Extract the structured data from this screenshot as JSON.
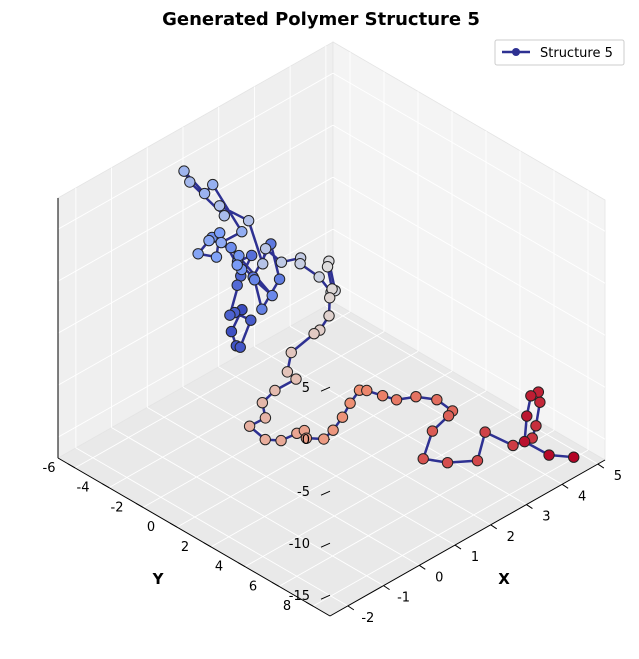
{
  "chart_data": {
    "type": "scatter3d-line",
    "title": "Generated Polymer Structure 5",
    "xlabel": "X",
    "ylabel": "Y",
    "zlabel": "",
    "x_ticks": [
      "-2",
      "-1",
      "0",
      "1",
      "2",
      "3",
      "4",
      "5"
    ],
    "y_ticks": [
      "-6",
      "-4",
      "-2",
      "0",
      "2",
      "4",
      "6",
      "8"
    ],
    "z_ticks": [
      "5",
      "0",
      "-5",
      "-10",
      "-15"
    ],
    "xlim": [
      -2.5,
      5.2
    ],
    "ylim": [
      -7,
      9
    ],
    "zlim": [
      -17,
      8
    ],
    "legend": {
      "label": "Structure 5",
      "position": "top-right"
    },
    "line_color": "#2e3192",
    "colormap": "coolwarm",
    "series": [
      {
        "name": "Structure 5",
        "points": [
          [
            -1.3,
            1.3,
            2.8
          ],
          [
            -1.5,
            1.1,
            0.9
          ],
          [
            -1.6,
            1.6,
            0.2
          ],
          [
            -1.3,
            1.2,
            -0.9
          ],
          [
            -1.1,
            1.4,
            1.5
          ],
          [
            -1.6,
            1.5,
            3.3
          ],
          [
            -1.4,
            0.8,
            2.0
          ],
          [
            -1.0,
            0.6,
            4.8
          ],
          [
            -1.1,
            0.6,
            4.1
          ],
          [
            -0.6,
            0.4,
            5.8
          ],
          [
            -0.9,
            0.2,
            5.6
          ],
          [
            -0.7,
            0.7,
            4.2
          ],
          [
            -0.3,
            0.9,
            6.8
          ],
          [
            -0.2,
            1.2,
            3.5
          ],
          [
            -0.6,
            1.0,
            1.2
          ],
          [
            -0.9,
            1.2,
            4.8
          ],
          [
            -0.5,
            1.4,
            2.7
          ],
          [
            -0.7,
            -0.6,
            5.8
          ],
          [
            -0.9,
            -1.3,
            6.5
          ],
          [
            -0.1,
            -1.4,
            3.1
          ],
          [
            -0.5,
            -0.4,
            3.5
          ],
          [
            -0.1,
            -1.5,
            2.1
          ],
          [
            -0.4,
            -1.9,
            5.4
          ],
          [
            -0.3,
            -2.3,
            2.5
          ],
          [
            -0.1,
            -3.8,
            1.0
          ],
          [
            0.3,
            -4.0,
            1.3
          ],
          [
            0.5,
            -3.7,
            1.0
          ],
          [
            0.6,
            -2.7,
            2.8
          ],
          [
            0.5,
            -4.2,
            6.1
          ],
          [
            0.7,
            -5.1,
            4.0
          ],
          [
            0.6,
            -6.1,
            5.4
          ],
          [
            1.0,
            -6.6,
            3.1
          ],
          [
            1.3,
            -5.2,
            0.6
          ],
          [
            1.5,
            -5.9,
            0.5
          ],
          [
            1.6,
            -4.4,
            0.3
          ],
          [
            0.9,
            -2.1,
            -0.3
          ],
          [
            0.6,
            -1.3,
            2.5
          ],
          [
            0.9,
            -1.0,
            0.9
          ],
          [
            1.2,
            -0.5,
            1.2
          ],
          [
            0.9,
            0.1,
            1.8
          ],
          [
            1.1,
            0.8,
            0.8
          ],
          [
            1.1,
            1.5,
            0.0
          ],
          [
            1.5,
            0.9,
            -1.2
          ],
          [
            1.8,
            -0.1,
            0.1
          ],
          [
            2.0,
            -0.6,
            -1.3
          ],
          [
            1.7,
            0.3,
            -2.0
          ],
          [
            1.3,
            1.0,
            -1.4
          ],
          [
            0.9,
            1.8,
            -1.6
          ],
          [
            0.5,
            2.1,
            -1.9
          ],
          [
            0.1,
            2.6,
            -1.0
          ],
          [
            -0.3,
            2.1,
            -2.5
          ],
          [
            -0.6,
            2.5,
            -3.4
          ],
          [
            -0.5,
            2.8,
            -4.0
          ],
          [
            -0.9,
            2.4,
            -4.7
          ],
          [
            -1.3,
            2.5,
            -5.0
          ],
          [
            -1.5,
            3.1,
            -5.5
          ],
          [
            -1.8,
            2.8,
            -6.0
          ],
          [
            -1.6,
            3.3,
            -7.2
          ],
          [
            -1.3,
            3.6,
            -7.6
          ],
          [
            -1.0,
            3.9,
            -7.2
          ],
          [
            -0.6,
            3.5,
            -8.1
          ],
          [
            -0.4,
            3.2,
            -9.5
          ],
          [
            -0.2,
            3.8,
            -9.4
          ],
          [
            0.3,
            3.3,
            -10.0
          ],
          [
            0.8,
            2.8,
            -10.2
          ],
          [
            1.3,
            2.2,
            -10.4
          ],
          [
            1.8,
            1.7,
            -10.6
          ],
          [
            2.1,
            1.5,
            -11.4
          ],
          [
            2.4,
            1.8,
            -12.2
          ],
          [
            2.6,
            2.2,
            -12.6
          ],
          [
            3.0,
            2.5,
            -12.8
          ],
          [
            3.3,
            3.1,
            -13.1
          ],
          [
            3.5,
            3.6,
            -14.1
          ],
          [
            3.2,
            4.0,
            -13.6
          ],
          [
            2.7,
            4.1,
            -14.0
          ],
          [
            2.3,
            4.4,
            -15.6
          ],
          [
            2.6,
            5.2,
            -15.8
          ],
          [
            3.2,
            5.7,
            -16.3
          ],
          [
            3.7,
            5.1,
            -15.1
          ],
          [
            4.1,
            5.9,
            -16.4
          ],
          [
            4.4,
            6.4,
            -15.8
          ],
          [
            4.6,
            6.2,
            -15.2
          ],
          [
            4.9,
            5.8,
            -13.9
          ],
          [
            5.0,
            5.5,
            -13.4
          ],
          [
            4.6,
            5.9,
            -12.6
          ],
          [
            4.2,
            6.5,
            -13.2
          ],
          [
            3.9,
            7.0,
            -14.6
          ],
          [
            4.3,
            7.6,
            -16.1
          ],
          [
            4.8,
            8.0,
            -16.9
          ]
        ]
      }
    ]
  }
}
